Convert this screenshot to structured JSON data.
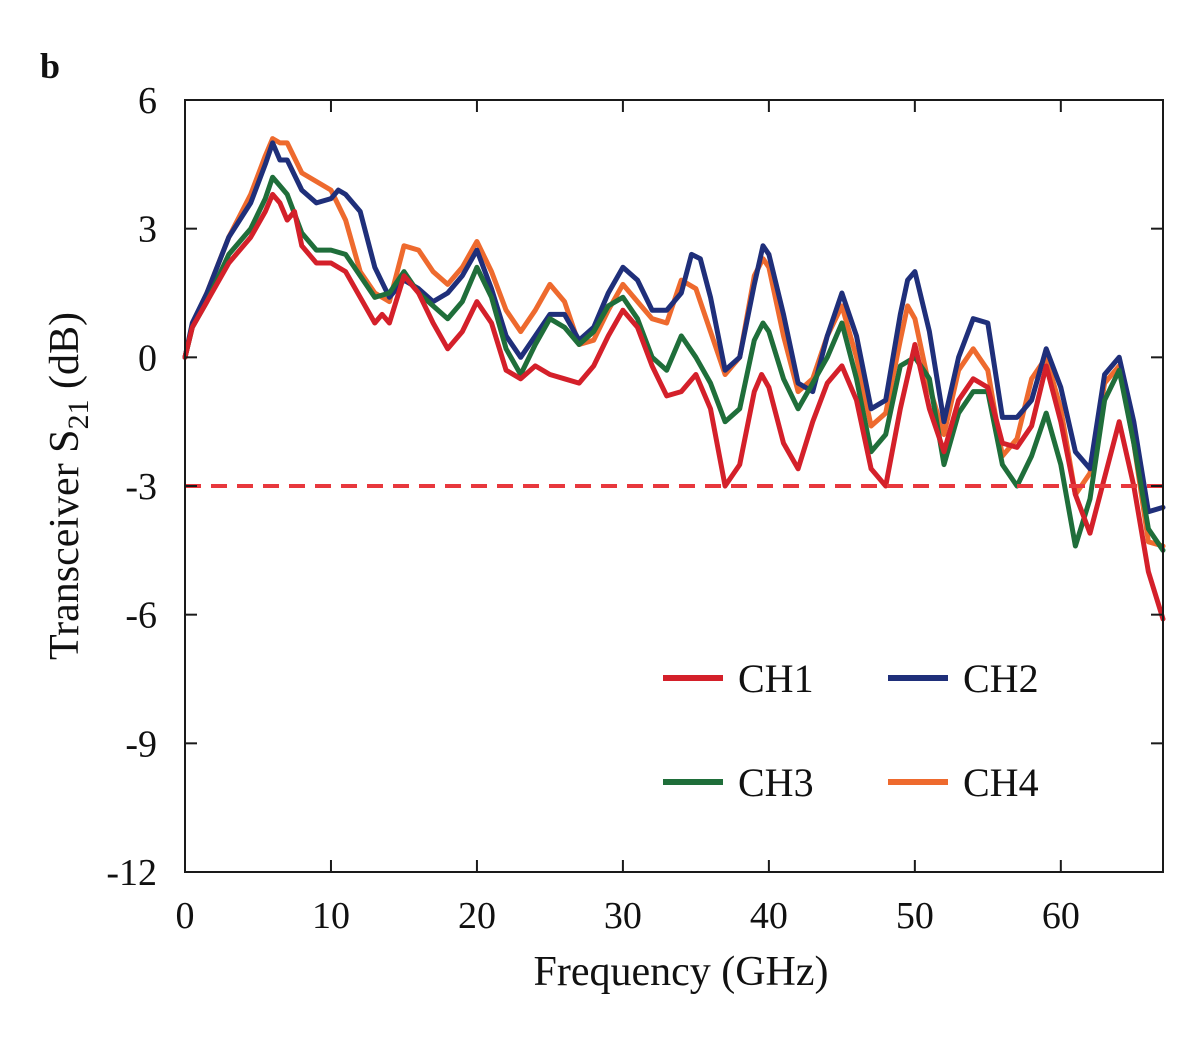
{
  "panel_label": "b",
  "chart_data": {
    "type": "line",
    "title": "",
    "xlabel": "Frequency (GHz)",
    "ylabel_main": "Transceiver S",
    "ylabel_sub": "21",
    "ylabel_unit": " (dB)",
    "xlim": [
      0,
      67
    ],
    "ylim": [
      -12,
      6
    ],
    "xticks": [
      0,
      10,
      20,
      30,
      40,
      50,
      60
    ],
    "xtick_labels": [
      "0",
      "10",
      "20",
      "30",
      "40",
      "50",
      "60"
    ],
    "yticks": [
      6,
      3,
      0,
      -3,
      -6,
      -9,
      -12
    ],
    "ytick_labels": [
      "6",
      "3",
      "0",
      "-3",
      "-6",
      "-9",
      "-12"
    ],
    "grid": false,
    "legend_position": "bottom-right",
    "reference_line": {
      "y": -3,
      "style": "dashed",
      "color": "#e8383d"
    },
    "series": [
      {
        "name": "CH1",
        "color": "#d4202a",
        "points": [
          [
            0,
            0
          ],
          [
            0.5,
            0.7
          ],
          [
            1.5,
            1.3
          ],
          [
            3,
            2.2
          ],
          [
            4.5,
            2.8
          ],
          [
            5.5,
            3.4
          ],
          [
            6,
            3.8
          ],
          [
            6.5,
            3.6
          ],
          [
            7,
            3.2
          ],
          [
            7.5,
            3.4
          ],
          [
            8,
            2.6
          ],
          [
            8.5,
            2.4
          ],
          [
            9,
            2.2
          ],
          [
            10,
            2.2
          ],
          [
            11,
            2
          ],
          [
            12,
            1.4
          ],
          [
            13,
            0.8
          ],
          [
            13.5,
            1.0
          ],
          [
            14,
            0.8
          ],
          [
            15,
            1.9
          ],
          [
            16,
            1.5
          ],
          [
            17,
            0.8
          ],
          [
            18,
            0.2
          ],
          [
            19,
            0.6
          ],
          [
            20,
            1.3
          ],
          [
            21,
            0.8
          ],
          [
            22,
            -0.3
          ],
          [
            23,
            -0.5
          ],
          [
            24,
            -0.2
          ],
          [
            25,
            -0.4
          ],
          [
            26,
            -0.5
          ],
          [
            27,
            -0.6
          ],
          [
            28,
            -0.2
          ],
          [
            29,
            0.5
          ],
          [
            30,
            1.1
          ],
          [
            31,
            0.7
          ],
          [
            32,
            -0.2
          ],
          [
            33,
            -0.9
          ],
          [
            34,
            -0.8
          ],
          [
            35,
            -0.4
          ],
          [
            36,
            -1.2
          ],
          [
            37,
            -3
          ],
          [
            38,
            -2.5
          ],
          [
            39,
            -0.8
          ],
          [
            39.5,
            -0.4
          ],
          [
            40,
            -0.7
          ],
          [
            41,
            -2
          ],
          [
            42,
            -2.6
          ],
          [
            43,
            -1.5
          ],
          [
            44,
            -0.6
          ],
          [
            45,
            -0.2
          ],
          [
            46,
            -1
          ],
          [
            47,
            -2.6
          ],
          [
            48,
            -3
          ],
          [
            49,
            -1.2
          ],
          [
            50,
            0.3
          ],
          [
            51,
            -1.2
          ],
          [
            52,
            -2.2
          ],
          [
            53,
            -1
          ],
          [
            54,
            -0.5
          ],
          [
            55,
            -0.7
          ],
          [
            56,
            -2
          ],
          [
            57,
            -2.1
          ],
          [
            58,
            -1.6
          ],
          [
            59,
            -0.2
          ],
          [
            60,
            -1.5
          ],
          [
            61,
            -3.2
          ],
          [
            62,
            -4.1
          ],
          [
            63,
            -2.8
          ],
          [
            64,
            -1.5
          ],
          [
            65,
            -3
          ],
          [
            66,
            -5
          ],
          [
            67,
            -6.1
          ]
        ]
      },
      {
        "name": "CH2",
        "color": "#1f2f7a",
        "points": [
          [
            0,
            0
          ],
          [
            0.5,
            0.8
          ],
          [
            1.5,
            1.5
          ],
          [
            3,
            2.8
          ],
          [
            4.5,
            3.6
          ],
          [
            5.5,
            4.5
          ],
          [
            6,
            5
          ],
          [
            6.5,
            4.6
          ],
          [
            7,
            4.6
          ],
          [
            8,
            3.9
          ],
          [
            9,
            3.6
          ],
          [
            10,
            3.7
          ],
          [
            10.5,
            3.9
          ],
          [
            11,
            3.8
          ],
          [
            12,
            3.4
          ],
          [
            13,
            2.1
          ],
          [
            14,
            1.4
          ],
          [
            15,
            1.8
          ],
          [
            16,
            1.6
          ],
          [
            17,
            1.3
          ],
          [
            18,
            1.5
          ],
          [
            19,
            1.9
          ],
          [
            20,
            2.5
          ],
          [
            21,
            1.6
          ],
          [
            22,
            0.5
          ],
          [
            23,
            0
          ],
          [
            24,
            0.5
          ],
          [
            25,
            1
          ],
          [
            26,
            1
          ],
          [
            27,
            0.4
          ],
          [
            28,
            0.7
          ],
          [
            29,
            1.5
          ],
          [
            30,
            2.1
          ],
          [
            31,
            1.8
          ],
          [
            32,
            1.1
          ],
          [
            33,
            1.1
          ],
          [
            34,
            1.5
          ],
          [
            34.7,
            2.4
          ],
          [
            35.3,
            2.3
          ],
          [
            36,
            1.4
          ],
          [
            37,
            -0.3
          ],
          [
            38,
            0
          ],
          [
            39,
            1.7
          ],
          [
            39.6,
            2.6
          ],
          [
            40,
            2.4
          ],
          [
            41,
            1
          ],
          [
            42,
            -0.6
          ],
          [
            43,
            -0.8
          ],
          [
            44,
            0.5
          ],
          [
            45,
            1.5
          ],
          [
            46,
            0.5
          ],
          [
            47,
            -1.2
          ],
          [
            48,
            -1
          ],
          [
            49,
            1
          ],
          [
            49.5,
            1.8
          ],
          [
            50,
            2
          ],
          [
            51,
            0.6
          ],
          [
            52,
            -1.5
          ],
          [
            53,
            0
          ],
          [
            54,
            0.9
          ],
          [
            55,
            0.8
          ],
          [
            56,
            -1.4
          ],
          [
            57,
            -1.4
          ],
          [
            58,
            -1
          ],
          [
            59,
            0.2
          ],
          [
            60,
            -0.7
          ],
          [
            61,
            -2.2
          ],
          [
            62,
            -2.6
          ],
          [
            63,
            -0.4
          ],
          [
            64,
            0
          ],
          [
            65,
            -1.5
          ],
          [
            66,
            -3.6
          ],
          [
            67,
            -3.5
          ]
        ]
      },
      {
        "name": "CH3",
        "color": "#1f6e3a",
        "points": [
          [
            0,
            0
          ],
          [
            0.5,
            0.7
          ],
          [
            1.5,
            1.3
          ],
          [
            3,
            2.4
          ],
          [
            4.5,
            3
          ],
          [
            5.5,
            3.7
          ],
          [
            6,
            4.2
          ],
          [
            6.5,
            4
          ],
          [
            7,
            3.8
          ],
          [
            8,
            2.9
          ],
          [
            9,
            2.5
          ],
          [
            10,
            2.5
          ],
          [
            11,
            2.4
          ],
          [
            12,
            1.9
          ],
          [
            13,
            1.4
          ],
          [
            14,
            1.5
          ],
          [
            15,
            2
          ],
          [
            16,
            1.5
          ],
          [
            17,
            1.2
          ],
          [
            18,
            0.9
          ],
          [
            19,
            1.3
          ],
          [
            20,
            2.1
          ],
          [
            21,
            1.4
          ],
          [
            22,
            0.2
          ],
          [
            23,
            -0.4
          ],
          [
            24,
            0.3
          ],
          [
            25,
            0.9
          ],
          [
            26,
            0.7
          ],
          [
            27,
            0.3
          ],
          [
            28,
            0.6
          ],
          [
            29,
            1.2
          ],
          [
            30,
            1.4
          ],
          [
            31,
            0.9
          ],
          [
            32,
            0
          ],
          [
            33,
            -0.3
          ],
          [
            34,
            0.5
          ],
          [
            35,
            0
          ],
          [
            36,
            -0.6
          ],
          [
            37,
            -1.5
          ],
          [
            38,
            -1.2
          ],
          [
            39,
            0.4
          ],
          [
            39.6,
            0.8
          ],
          [
            40,
            0.6
          ],
          [
            41,
            -0.5
          ],
          [
            42,
            -1.2
          ],
          [
            43,
            -0.6
          ],
          [
            44,
            0
          ],
          [
            45,
            0.8
          ],
          [
            46,
            -0.5
          ],
          [
            47,
            -2.2
          ],
          [
            48,
            -1.8
          ],
          [
            49,
            -0.2
          ],
          [
            50,
            0
          ],
          [
            51,
            -0.5
          ],
          [
            52,
            -2.5
          ],
          [
            53,
            -1.3
          ],
          [
            54,
            -0.8
          ],
          [
            55,
            -0.8
          ],
          [
            56,
            -2.5
          ],
          [
            57,
            -3
          ],
          [
            58,
            -2.3
          ],
          [
            59,
            -1.3
          ],
          [
            60,
            -2.5
          ],
          [
            61,
            -4.4
          ],
          [
            62,
            -3.3
          ],
          [
            63,
            -1
          ],
          [
            64,
            -0.3
          ],
          [
            65,
            -2
          ],
          [
            66,
            -4
          ],
          [
            67,
            -4.5
          ]
        ]
      },
      {
        "name": "CH4",
        "color": "#ee6a2e",
        "points": [
          [
            0,
            0
          ],
          [
            0.5,
            0.7
          ],
          [
            1.5,
            1.5
          ],
          [
            3,
            2.8
          ],
          [
            4.5,
            3.8
          ],
          [
            5.5,
            4.7
          ],
          [
            6,
            5.1
          ],
          [
            6.5,
            5
          ],
          [
            7,
            5
          ],
          [
            8,
            4.3
          ],
          [
            9,
            4.1
          ],
          [
            10,
            3.9
          ],
          [
            11,
            3.2
          ],
          [
            12,
            2
          ],
          [
            13,
            1.5
          ],
          [
            14,
            1.3
          ],
          [
            15,
            2.6
          ],
          [
            16,
            2.5
          ],
          [
            17,
            2
          ],
          [
            18,
            1.7
          ],
          [
            19,
            2.1
          ],
          [
            20,
            2.7
          ],
          [
            21,
            2
          ],
          [
            22,
            1.1
          ],
          [
            23,
            0.6
          ],
          [
            24,
            1.1
          ],
          [
            25,
            1.7
          ],
          [
            26,
            1.3
          ],
          [
            27,
            0.3
          ],
          [
            28,
            0.4
          ],
          [
            29,
            1.1
          ],
          [
            30,
            1.7
          ],
          [
            31,
            1.3
          ],
          [
            32,
            0.9
          ],
          [
            33,
            0.8
          ],
          [
            34,
            1.8
          ],
          [
            35,
            1.6
          ],
          [
            36,
            0.6
          ],
          [
            37,
            -0.4
          ],
          [
            38,
            0
          ],
          [
            39,
            1.9
          ],
          [
            39.6,
            2.3
          ],
          [
            40,
            2.1
          ],
          [
            41,
            0.5
          ],
          [
            42,
            -0.8
          ],
          [
            43,
            -0.5
          ],
          [
            44,
            0.5
          ],
          [
            45,
            1.2
          ],
          [
            46,
            0
          ],
          [
            47,
            -1.6
          ],
          [
            48,
            -1.3
          ],
          [
            49,
            0.4
          ],
          [
            49.5,
            1.2
          ],
          [
            50,
            0.9
          ],
          [
            51,
            -0.7
          ],
          [
            52,
            -1.8
          ],
          [
            53,
            -0.3
          ],
          [
            54,
            0.2
          ],
          [
            55,
            -0.3
          ],
          [
            56,
            -2.3
          ],
          [
            57,
            -1.9
          ],
          [
            58,
            -0.5
          ],
          [
            59,
            0
          ],
          [
            60,
            -1.2
          ],
          [
            61,
            -3.2
          ],
          [
            62,
            -2.7
          ],
          [
            63,
            -0.6
          ],
          [
            64,
            -0.2
          ],
          [
            65,
            -2
          ],
          [
            66,
            -4.3
          ],
          [
            67,
            -4.4
          ]
        ]
      }
    ]
  }
}
